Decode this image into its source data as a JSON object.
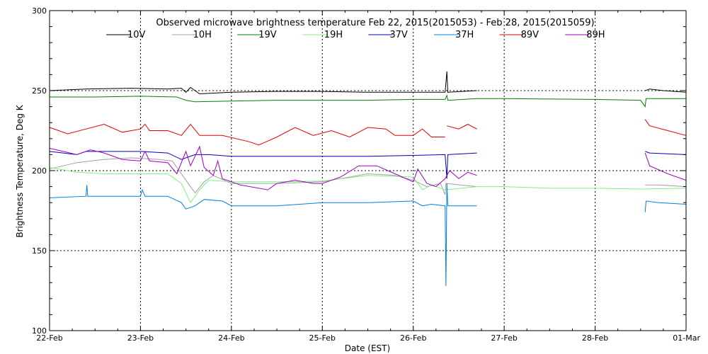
{
  "chart_data": {
    "type": "line",
    "title": "Observed microwave brightness temperature Feb 22, 2015(2015053) - Feb 28, 2015(2015059)",
    "xlabel": "Date (EST)",
    "ylabel": "Brightness Temperature, Deg K",
    "xlim": [
      0,
      7
    ],
    "ylim": [
      100,
      300
    ],
    "x_tick_values": [
      0,
      1,
      2,
      3,
      4,
      5,
      6,
      7
    ],
    "x_tick_labels": [
      "22-Feb",
      "23-Feb",
      "24-Feb",
      "25-Feb",
      "26-Feb",
      "27-Feb",
      "28-Feb",
      "01-Mar"
    ],
    "y_tick_values": [
      100,
      150,
      200,
      250,
      300
    ],
    "y_tick_labels": [
      "100",
      "150",
      "200",
      "250",
      "300"
    ],
    "grid": true,
    "legend_position": "top",
    "x_units_note": "days from 22-Feb 00:00 EST",
    "series": [
      {
        "name": "10V",
        "color": "#000000",
        "points": [
          [
            0,
            250
          ],
          [
            0.4,
            251
          ],
          [
            0.9,
            251.5
          ],
          [
            1.3,
            251
          ],
          [
            1.45,
            251.5
          ],
          [
            1.5,
            249
          ],
          [
            1.55,
            252
          ],
          [
            1.65,
            248
          ],
          [
            2,
            249
          ],
          [
            2.5,
            249.5
          ],
          [
            3,
            249.5
          ],
          [
            3.5,
            249
          ],
          [
            4,
            249
          ],
          [
            4.35,
            249
          ],
          [
            4.37,
            262
          ],
          [
            4.38,
            249
          ],
          [
            4.7,
            250
          ],
          [
            null,
            null
          ],
          [
            6.55,
            250
          ],
          [
            6.6,
            251
          ],
          [
            6.75,
            250
          ],
          [
            7,
            249
          ]
        ]
      },
      {
        "name": "10H",
        "color": "#a0a0a0",
        "points": [
          [
            0,
            201
          ],
          [
            0.3,
            205
          ],
          [
            0.6,
            207
          ],
          [
            0.9,
            208
          ],
          [
            1.2,
            207
          ],
          [
            1.35,
            206
          ],
          [
            1.45,
            198
          ],
          [
            1.5,
            194
          ],
          [
            1.6,
            186
          ],
          [
            1.7,
            193
          ],
          [
            1.8,
            197
          ],
          [
            2,
            192
          ],
          [
            2.5,
            192
          ],
          [
            3,
            193
          ],
          [
            3.5,
            198
          ],
          [
            3.8,
            197
          ],
          [
            4,
            194
          ],
          [
            4.15,
            190
          ],
          [
            4.3,
            192
          ],
          [
            4.35,
            185
          ],
          [
            4.36,
            192
          ],
          [
            4.7,
            190
          ],
          [
            null,
            null
          ],
          [
            6.55,
            191
          ],
          [
            6.7,
            191
          ],
          [
            7,
            190
          ]
        ]
      },
      {
        "name": "19V",
        "color": "#008000",
        "points": [
          [
            0,
            246
          ],
          [
            0.5,
            246
          ],
          [
            1,
            246.5
          ],
          [
            1.4,
            246
          ],
          [
            1.5,
            244
          ],
          [
            1.6,
            243
          ],
          [
            2,
            243.5
          ],
          [
            2.5,
            244
          ],
          [
            3,
            244
          ],
          [
            3.5,
            244
          ],
          [
            4,
            244.5
          ],
          [
            4.35,
            244.5
          ],
          [
            4.37,
            247
          ],
          [
            4.38,
            244
          ],
          [
            4.7,
            245
          ],
          [
            5,
            245
          ],
          [
            6,
            244.5
          ],
          [
            6.5,
            244
          ],
          [
            6.55,
            240
          ],
          [
            6.56,
            245
          ],
          [
            7,
            245
          ]
        ]
      },
      {
        "name": "19H",
        "color": "#80f080",
        "points": [
          [
            0,
            202
          ],
          [
            0.3,
            199
          ],
          [
            0.6,
            198
          ],
          [
            1,
            198
          ],
          [
            1.3,
            198
          ],
          [
            1.45,
            192
          ],
          [
            1.55,
            180
          ],
          [
            1.65,
            188
          ],
          [
            1.75,
            194
          ],
          [
            2,
            193
          ],
          [
            2.5,
            193
          ],
          [
            3,
            193.5
          ],
          [
            3.5,
            197
          ],
          [
            4,
            196
          ],
          [
            4.1,
            188
          ],
          [
            4.2,
            191
          ],
          [
            4.35,
            188
          ],
          [
            4.7,
            190
          ],
          [
            5,
            190
          ],
          [
            5.5,
            189
          ],
          [
            6,
            189
          ],
          [
            6.5,
            188.5
          ],
          [
            7,
            189
          ]
        ]
      },
      {
        "name": "37V",
        "color": "#0000c0",
        "points": [
          [
            0,
            212
          ],
          [
            0.3,
            210
          ],
          [
            0.4,
            212
          ],
          [
            0.6,
            212
          ],
          [
            1,
            212
          ],
          [
            1.3,
            211
          ],
          [
            1.45,
            207
          ],
          [
            1.6,
            210
          ],
          [
            1.75,
            210
          ],
          [
            2,
            209
          ],
          [
            2.5,
            209
          ],
          [
            3,
            209
          ],
          [
            3.5,
            209
          ],
          [
            4,
            209.5
          ],
          [
            4.35,
            210
          ],
          [
            4.37,
            195
          ],
          [
            4.38,
            210
          ],
          [
            4.7,
            211
          ],
          [
            null,
            null
          ],
          [
            6.55,
            212
          ],
          [
            6.6,
            211
          ],
          [
            7,
            210
          ]
        ]
      },
      {
        "name": "37H",
        "color": "#0080e0",
        "points": [
          [
            0,
            183
          ],
          [
            0.4,
            184
          ],
          [
            0.41,
            191
          ],
          [
            0.42,
            184
          ],
          [
            0.7,
            184
          ],
          [
            1,
            184
          ],
          [
            1.02,
            188
          ],
          [
            1.05,
            184
          ],
          [
            1.3,
            184
          ],
          [
            1.45,
            180
          ],
          [
            1.5,
            176
          ],
          [
            1.6,
            178
          ],
          [
            1.7,
            182
          ],
          [
            1.9,
            181
          ],
          [
            2,
            178
          ],
          [
            2.5,
            178
          ],
          [
            3,
            180
          ],
          [
            3.5,
            180
          ],
          [
            4,
            181
          ],
          [
            4.1,
            178
          ],
          [
            4.2,
            179
          ],
          [
            4.35,
            178
          ],
          [
            4.36,
            128
          ],
          [
            4.37,
            192
          ],
          [
            4.38,
            178
          ],
          [
            4.7,
            178
          ],
          [
            null,
            null
          ],
          [
            6.55,
            174
          ],
          [
            6.56,
            181
          ],
          [
            6.7,
            180
          ],
          [
            7,
            179
          ]
        ]
      },
      {
        "name": "89V",
        "color": "#e00000",
        "points": [
          [
            0,
            227
          ],
          [
            0.2,
            223
          ],
          [
            0.4,
            226
          ],
          [
            0.6,
            229
          ],
          [
            0.8,
            224
          ],
          [
            1,
            226
          ],
          [
            1.05,
            229
          ],
          [
            1.1,
            225
          ],
          [
            1.3,
            225
          ],
          [
            1.45,
            222
          ],
          [
            1.55,
            229
          ],
          [
            1.65,
            222
          ],
          [
            1.9,
            222
          ],
          [
            2.2,
            218
          ],
          [
            2.3,
            216
          ],
          [
            2.5,
            221
          ],
          [
            2.7,
            227
          ],
          [
            2.9,
            222
          ],
          [
            3.1,
            225
          ],
          [
            3.3,
            221
          ],
          [
            3.5,
            227
          ],
          [
            3.7,
            226
          ],
          [
            3.8,
            222
          ],
          [
            4,
            222
          ],
          [
            4.1,
            226
          ],
          [
            4.2,
            221
          ],
          [
            4.3,
            221
          ],
          [
            4.35,
            221
          ],
          [
            null,
            null
          ],
          [
            4.37,
            228
          ],
          [
            4.5,
            226
          ],
          [
            4.6,
            229
          ],
          [
            4.7,
            226
          ],
          [
            null,
            null
          ],
          [
            6.55,
            232
          ],
          [
            6.6,
            228
          ],
          [
            6.8,
            225
          ],
          [
            7,
            222
          ]
        ]
      },
      {
        "name": "89H",
        "color": "#a000c0",
        "points": [
          [
            0,
            214
          ],
          [
            0.3,
            210
          ],
          [
            0.45,
            213
          ],
          [
            0.6,
            211
          ],
          [
            0.8,
            207
          ],
          [
            1,
            206
          ],
          [
            1.05,
            212
          ],
          [
            1.1,
            206
          ],
          [
            1.3,
            205
          ],
          [
            1.4,
            198
          ],
          [
            1.5,
            212
          ],
          [
            1.55,
            203
          ],
          [
            1.65,
            215
          ],
          [
            1.7,
            202
          ],
          [
            1.8,
            197
          ],
          [
            1.85,
            206
          ],
          [
            1.9,
            195
          ],
          [
            2.1,
            191
          ],
          [
            2.4,
            188
          ],
          [
            2.5,
            192
          ],
          [
            2.7,
            194
          ],
          [
            2.9,
            192
          ],
          [
            3,
            192
          ],
          [
            3.2,
            196
          ],
          [
            3.4,
            203
          ],
          [
            3.6,
            203
          ],
          [
            3.8,
            198
          ],
          [
            4,
            193
          ],
          [
            4.05,
            201
          ],
          [
            4.15,
            192
          ],
          [
            4.25,
            190
          ],
          [
            4.35,
            195
          ],
          [
            4.4,
            200
          ],
          [
            4.5,
            195
          ],
          [
            4.6,
            199
          ],
          [
            4.7,
            197
          ],
          [
            null,
            null
          ],
          [
            6.55,
            211
          ],
          [
            6.6,
            203
          ],
          [
            6.8,
            198
          ],
          [
            7,
            194
          ]
        ]
      }
    ]
  }
}
